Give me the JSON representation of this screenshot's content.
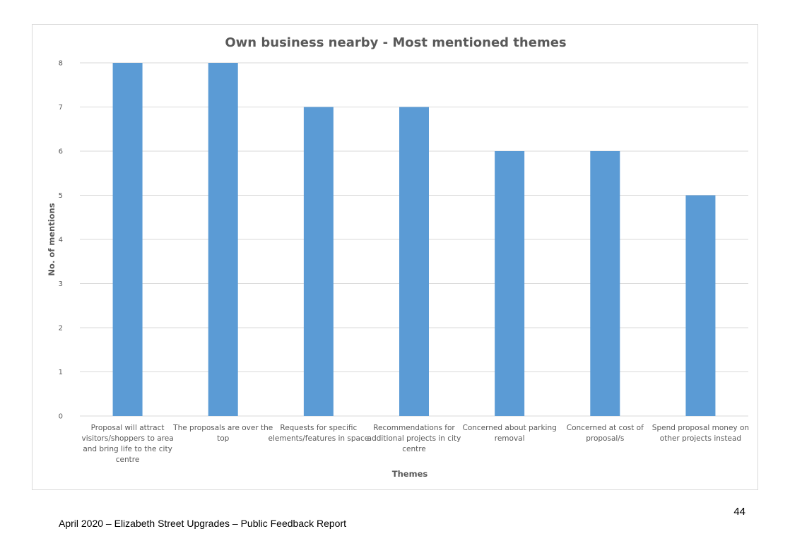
{
  "chart_data": {
    "type": "bar",
    "title": "Own business nearby - Most mentioned themes",
    "xlabel": "Themes",
    "ylabel": "No. of mentions",
    "ylim": [
      0,
      8
    ],
    "yticks": [
      0,
      1,
      2,
      3,
      4,
      5,
      6,
      7,
      8
    ],
    "grid": true,
    "legend": "none",
    "bar_color": "#5b9bd5",
    "categories": [
      "Proposal will attract visitors/shoppers to area and bring life to the city centre",
      "The proposals are over the top",
      "Requests for specific elements/features in space",
      "Recommendations for additional projects in city centre",
      "Concerned about parking removal",
      "Concerned at cost of proposal/s",
      "Spend proposal money on other projects instead"
    ],
    "category_lines": [
      [
        "Proposal will attract",
        "visitors/shoppers to area",
        "and bring life to the city",
        "centre"
      ],
      [
        "The proposals are over the",
        "top"
      ],
      [
        "Requests for specific",
        "elements/features in space"
      ],
      [
        "Recommendations for",
        "additional projects in city",
        "centre"
      ],
      [
        "Concerned about parking",
        "removal"
      ],
      [
        "Concerned at cost of",
        "proposal/s"
      ],
      [
        "Spend proposal money on",
        "other projects instead"
      ]
    ],
    "values": [
      8,
      8,
      7,
      7,
      6,
      6,
      5
    ]
  },
  "page": {
    "number": "44",
    "footer": "April 2020 – Elizabeth Street Upgrades – Public Feedback Report"
  }
}
